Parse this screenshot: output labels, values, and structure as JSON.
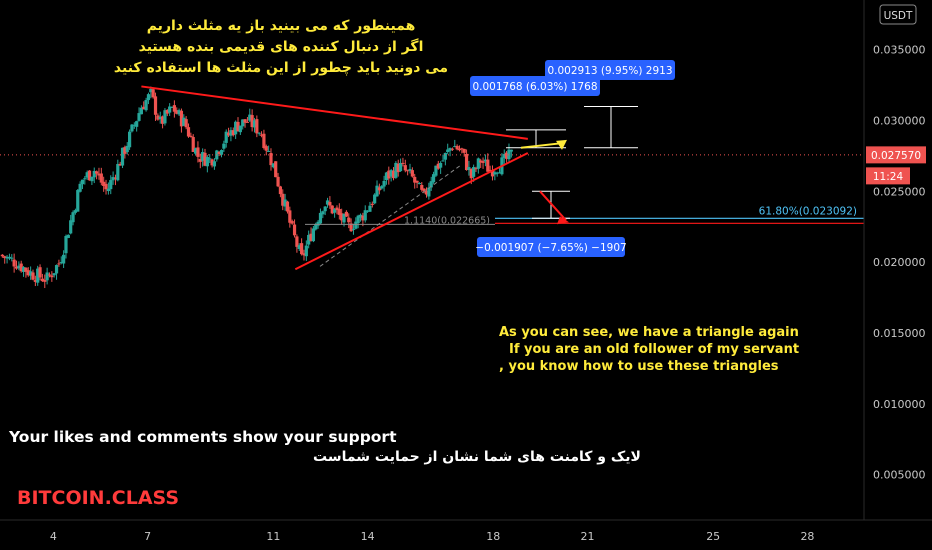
{
  "chart_data": {
    "type": "candlestick",
    "currency": "USDT",
    "price_axis": {
      "ticks": [
        "0.035000",
        "0.030000",
        "0.025000",
        "0.020000",
        "0.015000",
        "0.010000",
        "0.005000"
      ],
      "tick_values": [
        0.035,
        0.03,
        0.025,
        0.02,
        0.015,
        0.01,
        0.005
      ],
      "range": [
        0.0018,
        0.0385
      ]
    },
    "time_axis": {
      "ticks": [
        "4",
        "7",
        "11",
        "14",
        "18",
        "21",
        "25",
        "28"
      ],
      "range": [
        2.3,
        29.8
      ]
    },
    "current_price": {
      "label": "0.027570",
      "value": 0.02757,
      "countdown": "11:24"
    },
    "fib_level": {
      "label": "61.80%(0.023092)",
      "value": 0.023092
    },
    "fib_level2": {
      "label": "1.1140(0.022665)",
      "value": 0.022665
    },
    "measure_up_1": {
      "label": "0.001768 (6.03%) 1768",
      "delta": 0.001768
    },
    "measure_up_2": {
      "label": "0.002913 (9.95%) 2913",
      "delta": 0.002913
    },
    "measure_down": {
      "label": "−0.001907 (−7.65%) −1907",
      "delta": -0.001907
    },
    "triangle": {
      "upper": [
        [
          6.8,
          0.0324
        ],
        [
          19.1,
          0.0287
        ]
      ],
      "lower": [
        [
          11.7,
          0.0195
        ],
        [
          19.1,
          0.0277
        ]
      ]
    },
    "price_path": [
      [
        2.3,
        0.0205
      ],
      [
        2.8,
        0.02
      ],
      [
        3.3,
        0.0192
      ],
      [
        3.8,
        0.0188
      ],
      [
        4.2,
        0.02
      ],
      [
        4.5,
        0.0225
      ],
      [
        4.9,
        0.0258
      ],
      [
        5.3,
        0.0265
      ],
      [
        5.7,
        0.025
      ],
      [
        6.1,
        0.027
      ],
      [
        6.4,
        0.0287
      ],
      [
        6.8,
        0.031
      ],
      [
        7.1,
        0.0318
      ],
      [
        7.4,
        0.0298
      ],
      [
        7.8,
        0.0309
      ],
      [
        8.2,
        0.0297
      ],
      [
        8.6,
        0.0275
      ],
      [
        9.0,
        0.0272
      ],
      [
        9.4,
        0.0285
      ],
      [
        9.8,
        0.0296
      ],
      [
        10.2,
        0.03
      ],
      [
        10.6,
        0.0292
      ],
      [
        11.0,
        0.0268
      ],
      [
        11.3,
        0.0245
      ],
      [
        11.6,
        0.0222
      ],
      [
        11.9,
        0.0202
      ],
      [
        12.2,
        0.022
      ],
      [
        12.6,
        0.0242
      ],
      [
        13.0,
        0.0235
      ],
      [
        13.4,
        0.0225
      ],
      [
        13.8,
        0.0232
      ],
      [
        14.2,
        0.0245
      ],
      [
        14.6,
        0.026
      ],
      [
        15.0,
        0.0268
      ],
      [
        15.4,
        0.026
      ],
      [
        15.8,
        0.0245
      ],
      [
        16.1,
        0.0265
      ],
      [
        16.4,
        0.0272
      ],
      [
        16.7,
        0.0283
      ],
      [
        17.0,
        0.0278
      ],
      [
        17.3,
        0.026
      ],
      [
        17.6,
        0.0272
      ],
      [
        17.9,
        0.0265
      ],
      [
        18.3,
        0.027
      ],
      [
        18.6,
        0.0276
      ]
    ]
  },
  "annotations": {
    "persian_title": [
      "همینطور که می بینید باز یه مثلث داریم",
      "اگر از دنبال کننده های قدیمی بنده هستید",
      "می دونید باید چطور از این مثلث ها استفاده کنید"
    ],
    "english_note": [
      "As you can see, we have a triangle again",
      "If you are an old follower of my servant",
      ", you know how to use these triangles"
    ],
    "support_en": "Your likes and comments show your support",
    "support_fa": "لایک و کامنت های شما نشان از حمایت شماست",
    "brand": "BITCOIN.CLASS"
  },
  "colors": {
    "up": "#26a69a",
    "down": "#ef5350",
    "trendline": "#ff1a1a",
    "badge": "#2962ff",
    "current_price_badge": "#ef5350",
    "brand_text": "#ff3b3b",
    "annotation_yellow": "#ffeb3b",
    "fib_line": "#4fc3f7"
  }
}
